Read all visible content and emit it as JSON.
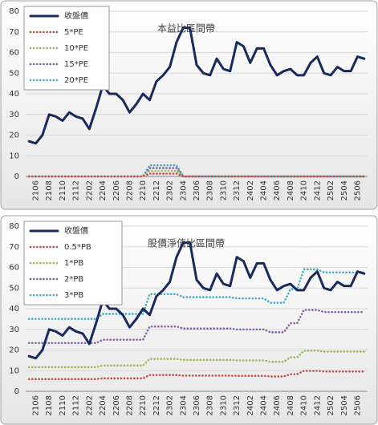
{
  "chart_data": [
    {
      "type": "line",
      "title": "本益比區間帶",
      "categories": [
        null,
        "2106",
        null,
        "2108",
        null,
        "2110",
        null,
        "2112",
        null,
        "2202",
        null,
        "2204",
        null,
        "2206",
        null,
        "2208",
        null,
        "2210",
        null,
        "2212",
        null,
        "2302",
        null,
        "2304",
        null,
        "2306",
        null,
        "2308",
        null,
        "2310",
        null,
        "2312",
        null,
        "2402",
        null,
        "2404",
        null,
        "2406",
        null,
        "2408",
        null,
        "2410",
        null,
        "2412",
        null,
        "2502",
        null,
        "2504",
        null,
        "2506",
        null
      ],
      "ylim": [
        0,
        80
      ],
      "yticks": [
        0,
        10,
        20,
        30,
        40,
        50,
        60,
        70,
        80
      ],
      "grid": true,
      "legend": "top-left",
      "series": [
        {
          "name": "收盤價",
          "color": "#1b2a5c",
          "line_style": "solid",
          "values": [
            17,
            16,
            20,
            30,
            29,
            27,
            31,
            29,
            28,
            23,
            33,
            44,
            40,
            40,
            37,
            31,
            35,
            40,
            37,
            46,
            49,
            53,
            65,
            72,
            72,
            54,
            50,
            49,
            57,
            52,
            51,
            65,
            63,
            55,
            62,
            62,
            54,
            49,
            51,
            52,
            49,
            49,
            55,
            58,
            50,
            49,
            53,
            51,
            51,
            58,
            57
          ]
        },
        {
          "name": "5*PE",
          "color": "#c0504d",
          "line_style": "dotted",
          "values": [
            0,
            0,
            0,
            0,
            0,
            0,
            0,
            0,
            0,
            0,
            0,
            0,
            0,
            0,
            0,
            0,
            0,
            0,
            1.35,
            1.35,
            1.35,
            1.35,
            1.35,
            0,
            0,
            0,
            0,
            0,
            0,
            0,
            0,
            0,
            0,
            0,
            0,
            0,
            0,
            0,
            0,
            0,
            0,
            0,
            0,
            0,
            0,
            0,
            0,
            0,
            0,
            0,
            0
          ]
        },
        {
          "name": "10*PE",
          "color": "#9bbb59",
          "line_style": "dotted",
          "values": [
            0,
            0,
            0,
            0,
            0,
            0,
            0,
            0,
            0,
            0,
            0,
            0,
            0,
            0,
            0,
            0,
            0,
            0,
            2.7,
            2.7,
            2.7,
            2.7,
            2.7,
            0,
            0,
            0,
            0,
            0,
            0,
            0,
            0,
            0,
            0,
            0,
            0,
            0,
            0,
            0,
            0,
            0,
            0,
            0,
            0,
            0,
            0,
            0,
            0,
            0,
            0,
            0,
            0
          ]
        },
        {
          "name": "15*PE",
          "color": "#8064a2",
          "line_style": "dotted",
          "values": [
            0,
            0,
            0,
            0,
            0,
            0,
            0,
            0,
            0,
            0,
            0,
            0,
            0,
            0,
            0,
            0,
            0,
            0,
            4.05,
            4.05,
            4.05,
            4.05,
            4.05,
            0,
            0,
            0,
            0,
            0,
            0,
            0,
            0,
            0,
            0,
            0,
            0,
            0,
            0,
            0,
            0,
            0,
            0,
            0,
            0,
            0,
            0,
            0,
            0,
            0,
            0,
            0,
            0
          ]
        },
        {
          "name": "20*PE",
          "color": "#4bacc6",
          "line_style": "dotted",
          "values": [
            0,
            0,
            0,
            0,
            0,
            0,
            0,
            0,
            0,
            0,
            0,
            0,
            0,
            0,
            0,
            0,
            0,
            0,
            5.4,
            5.4,
            5.4,
            5.4,
            5.4,
            0,
            0,
            0,
            0,
            0,
            0,
            0,
            0,
            0,
            0,
            0,
            0,
            0,
            0,
            0,
            0,
            0,
            0,
            0,
            0,
            0,
            0,
            0,
            0,
            0,
            0,
            0,
            0
          ]
        }
      ]
    },
    {
      "type": "line",
      "title": "股價淨值比區間帶",
      "categories": [
        null,
        "2106",
        null,
        "2108",
        null,
        "2110",
        null,
        "2112",
        null,
        "2202",
        null,
        "2204",
        null,
        "2206",
        null,
        "2208",
        null,
        "2210",
        null,
        "2212",
        null,
        "2302",
        null,
        "2304",
        null,
        "2306",
        null,
        "2308",
        null,
        "2310",
        null,
        "2312",
        null,
        "2402",
        null,
        "2404",
        null,
        "2406",
        null,
        "2408",
        null,
        "2410",
        null,
        "2412",
        null,
        "2502",
        null,
        "2504",
        null,
        "2506",
        null
      ],
      "ylim": [
        0,
        80
      ],
      "yticks": [
        0,
        10,
        20,
        30,
        40,
        50,
        60,
        70,
        80
      ],
      "grid": true,
      "legend": "top-left",
      "series": [
        {
          "name": "收盤價",
          "color": "#1b2a5c",
          "line_style": "solid",
          "values": [
            17,
            16,
            20,
            30,
            29,
            27,
            31,
            29,
            28,
            23,
            33,
            44,
            40,
            40,
            37,
            31,
            35,
            40,
            37,
            46,
            49,
            53,
            65,
            72,
            72,
            54,
            50,
            49,
            57,
            52,
            51,
            65,
            63,
            55,
            62,
            62,
            54,
            49,
            51,
            52,
            49,
            49,
            55,
            58,
            50,
            49,
            53,
            51,
            51,
            58,
            57
          ]
        },
        {
          "name": "0.5*PB",
          "color": "#c0504d",
          "line_style": "dotted",
          "values": [
            5.9,
            5.9,
            5.9,
            5.9,
            5.9,
            5.9,
            5.9,
            5.9,
            5.9,
            5.9,
            5.9,
            6.3,
            6.3,
            6.3,
            6.3,
            6.3,
            6.3,
            6.3,
            7.9,
            7.9,
            7.9,
            7.9,
            7.9,
            7.6,
            7.6,
            7.6,
            7.6,
            7.6,
            7.6,
            7.6,
            7.6,
            7.5,
            7.5,
            7.5,
            7.5,
            7.5,
            7.2,
            7.2,
            7.2,
            8.3,
            8.3,
            9.9,
            9.9,
            9.9,
            9.6,
            9.6,
            9.6,
            9.6,
            9.6,
            9.6,
            9.6
          ]
        },
        {
          "name": "1*PB",
          "color": "#9bbb59",
          "line_style": "dotted",
          "values": [
            11.7,
            11.7,
            11.7,
            11.7,
            11.7,
            11.7,
            11.7,
            11.7,
            11.7,
            11.7,
            11.7,
            12.5,
            12.5,
            12.5,
            12.5,
            12.5,
            12.5,
            12.5,
            15.7,
            15.7,
            15.7,
            15.7,
            15.7,
            15.2,
            15.2,
            15.2,
            15.2,
            15.2,
            15.2,
            15.2,
            15.2,
            15,
            15,
            15,
            15,
            15,
            14.3,
            14.3,
            14.3,
            16.5,
            16.5,
            19.7,
            19.7,
            19.7,
            19.2,
            19.2,
            19.2,
            19.2,
            19.2,
            19.2,
            19.2
          ]
        },
        {
          "name": "2*PB",
          "color": "#8064a2",
          "line_style": "dotted",
          "values": [
            23.4,
            23.4,
            23.4,
            23.4,
            23.4,
            23.4,
            23.4,
            23.4,
            23.4,
            23.4,
            23.4,
            25,
            25,
            25,
            25,
            25,
            25,
            25,
            31.4,
            31.4,
            31.4,
            31.4,
            31.4,
            30.4,
            30.4,
            30.4,
            30.4,
            30.4,
            30.4,
            30.4,
            30.4,
            30,
            30,
            30,
            30,
            30,
            28.6,
            28.6,
            28.6,
            33,
            33,
            39.4,
            39.4,
            39.4,
            38.4,
            38.4,
            38.4,
            38.4,
            38.4,
            38.4,
            38.4
          ]
        },
        {
          "name": "3*PB",
          "color": "#4bacc6",
          "line_style": "dotted",
          "values": [
            35.1,
            35.1,
            35.1,
            35.1,
            35.1,
            35.1,
            35.1,
            35.1,
            35.1,
            35.1,
            35.1,
            37.5,
            37.5,
            37.5,
            37.5,
            37.5,
            37.5,
            37.5,
            47.1,
            47.1,
            47.1,
            47.1,
            47.1,
            45.6,
            45.6,
            45.6,
            45.6,
            45.6,
            45.6,
            45.6,
            45.6,
            45,
            45,
            45,
            45,
            45,
            42.9,
            42.9,
            42.9,
            49.5,
            49.5,
            59.1,
            59.1,
            59.1,
            57.6,
            57.6,
            57.6,
            57.6,
            57.6,
            57.6,
            57.6
          ]
        }
      ]
    }
  ]
}
